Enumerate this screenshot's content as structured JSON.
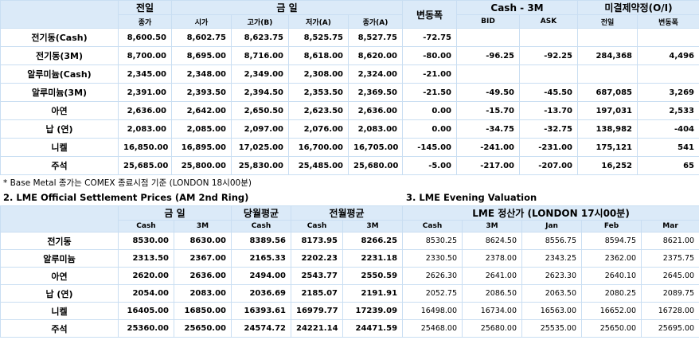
{
  "top_table": {
    "header_row1": [
      "전일",
      "금 일",
      "변동폭",
      "Cash - 3M",
      "미결제약정(O/I)"
    ],
    "header_row2": [
      "종가",
      "시가",
      "고가(B)",
      "저가(A)",
      "종가(A)",
      "BID",
      "ASK",
      "전일",
      "변동폭"
    ],
    "rows": [
      [
        "전기동(Cash)",
        "8,600.50",
        "8,602.75",
        "8,623.75",
        "8,525.75",
        "8,527.75",
        "-72.75",
        null,
        null,
        null,
        null
      ],
      [
        "전기동(3M)",
        "8,700.00",
        "8,695.00",
        "8,716.00",
        "8,618.00",
        "8,620.00",
        "-80.00",
        "-96.25",
        "-92.25",
        "284,368",
        "4,496"
      ],
      [
        "알루미늄(Cash)",
        "2,345.00",
        "2,348.00",
        "2,349.00",
        "2,308.00",
        "2,324.00",
        "-21.00",
        null,
        null,
        null,
        null
      ],
      [
        "알루미늄(3M)",
        "2,391.00",
        "2,393.50",
        "2,394.50",
        "2,353.50",
        "2,369.50",
        "-21.50",
        "-49.50",
        "-45.50",
        "687,085",
        "3,269"
      ],
      [
        "아연",
        "2,636.00",
        "2,642.00",
        "2,650.50",
        "2,623.50",
        "2,636.00",
        "0.00",
        "-15.70",
        "-13.70",
        "197,031",
        "2,533"
      ],
      [
        "납 (연)",
        "2,083.00",
        "2,085.00",
        "2,097.00",
        "2,076.00",
        "2,083.00",
        "0.00",
        "-34.75",
        "-32.75",
        "138,982",
        "-404"
      ],
      [
        "니켈",
        "16,850.00",
        "16,895.00",
        "17,025.00",
        "16,700.00",
        "16,705.00",
        "-145.00",
        "-241.00",
        "-231.00",
        "175,121",
        "541"
      ],
      [
        "주석",
        "25,685.00",
        "25,800.00",
        "25,830.00",
        "25,485.00",
        "25,680.00",
        "-5.00",
        "-217.00",
        "-207.00",
        "16,252",
        "65"
      ]
    ]
  },
  "note": "* Base Metal 종가는 COMEX 종료시점 기준 (LONDON 18시00분)",
  "section2_title": "2. LME Official Settlement Prices (AM 2nd Ring)",
  "section3_title": "3. LME Evening Valuation",
  "bottom_table": {
    "header_row1": [
      "금 일",
      "당월평균",
      "전월평균",
      "LME 정산가 (LONDON 17시00분)"
    ],
    "header_row2": [
      "Cash",
      "3M",
      "Cash",
      "Cash",
      "3M",
      "Cash",
      "3M",
      "Jan",
      "Feb",
      "Mar"
    ],
    "rows": [
      [
        "전기동",
        "8530.00",
        "8630.00",
        "8389.56",
        "8173.95",
        "8266.25",
        "8530.25",
        "8624.50",
        "8556.75",
        "8594.75",
        "8621.00"
      ],
      [
        "알루미늄",
        "2313.50",
        "2367.00",
        "2165.33",
        "2202.23",
        "2231.18",
        "2330.50",
        "2378.00",
        "2343.25",
        "2362.00",
        "2375.75"
      ],
      [
        "아연",
        "2620.00",
        "2636.00",
        "2494.00",
        "2543.77",
        "2550.59",
        "2626.30",
        "2641.00",
        "2623.30",
        "2640.10",
        "2645.00"
      ],
      [
        "납 (연)",
        "2054.00",
        "2083.00",
        "2036.69",
        "2185.07",
        "2191.91",
        "2052.75",
        "2086.50",
        "2063.50",
        "2080.25",
        "2089.75"
      ],
      [
        "니켈",
        "16405.00",
        "16850.00",
        "16393.61",
        "16979.77",
        "17239.09",
        "16498.00",
        "16734.00",
        "16563.00",
        "16652.00",
        "16728.00"
      ],
      [
        "주석",
        "25360.00",
        "25650.00",
        "24574.72",
        "24221.14",
        "24471.59",
        "25468.00",
        "25680.00",
        "25535.00",
        "25650.00",
        "25695.00"
      ]
    ]
  }
}
